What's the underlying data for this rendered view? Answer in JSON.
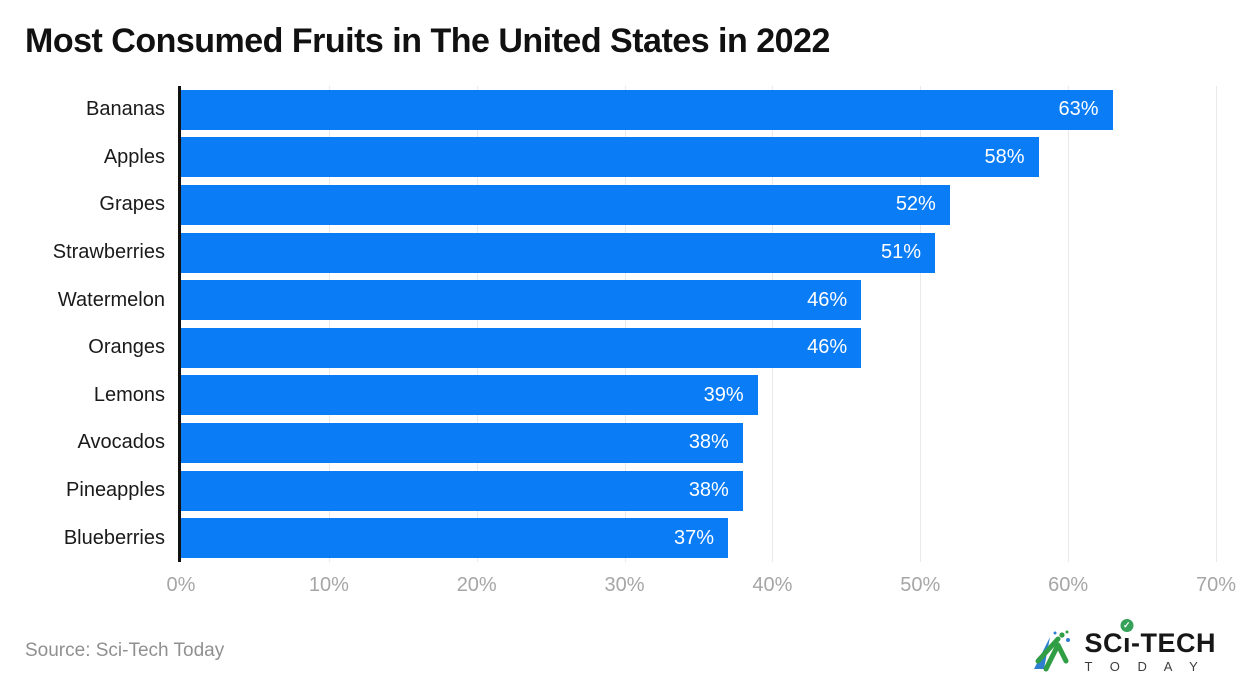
{
  "title": "Most Consumed Fruits in The United States in 2022",
  "chart_data": {
    "type": "bar",
    "orientation": "horizontal",
    "title": "Most Consumed Fruits in The United States in 2022",
    "categories": [
      "Bananas",
      "Apples",
      "Grapes",
      "Strawberries",
      "Watermelon",
      "Oranges",
      "Lemons",
      "Avocados",
      "Pineapples",
      "Blueberries"
    ],
    "values": [
      63,
      58,
      52,
      51,
      46,
      46,
      39,
      38,
      38,
      37
    ],
    "value_labels": [
      "63%",
      "58%",
      "52%",
      "51%",
      "46%",
      "46%",
      "39%",
      "38%",
      "38%",
      "37%"
    ],
    "xlim": [
      0,
      70
    ],
    "x_ticks": [
      "0%",
      "10%",
      "20%",
      "30%",
      "40%",
      "50%",
      "60%",
      "70%"
    ],
    "xlabel": "",
    "ylabel": "",
    "grid": true,
    "legend": false,
    "bar_color": "#0a7cf5",
    "grid_color": "#e9e9e9",
    "axis_color": "#111111",
    "value_label_color": "#ffffff",
    "tick_label_color": "#a6a6a6"
  },
  "footer": {
    "source": "Source: Sci-Tech Today"
  },
  "brand": {
    "sc": "SC",
    "i": "ı",
    "tech": "-TECH",
    "today": "T O D A Y",
    "check": "✓"
  }
}
